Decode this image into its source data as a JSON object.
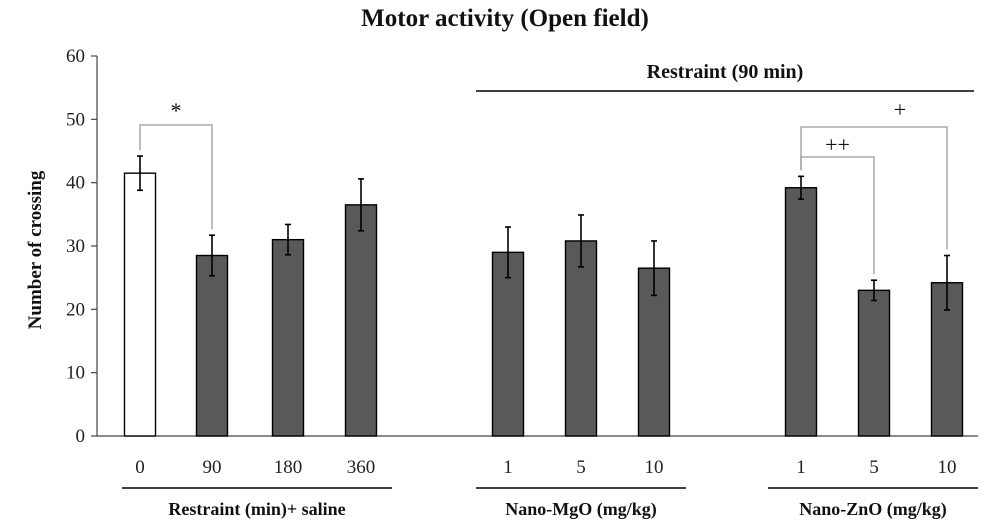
{
  "chart_data": {
    "type": "bar",
    "title": "Motor activity (Open field)",
    "ylabel": "Number of crossing",
    "xlabel": "",
    "ylim": [
      0,
      60
    ],
    "yticks": [
      0,
      10,
      20,
      30,
      40,
      50,
      60
    ],
    "colors": {
      "control": "#ffffff",
      "treated": "#595959",
      "outline": "#000000"
    },
    "categories": [
      "0",
      "90",
      "180",
      "360",
      "1",
      "5",
      "10",
      "1",
      "5",
      "10"
    ],
    "values": [
      41.5,
      28.5,
      31.0,
      36.5,
      29.0,
      30.8,
      26.5,
      39.2,
      23.0,
      24.2
    ],
    "errors": [
      2.7,
      3.2,
      2.4,
      4.1,
      4.0,
      4.1,
      4.3,
      1.8,
      1.6,
      4.3
    ],
    "bar_fill": [
      "control",
      "treated",
      "treated",
      "treated",
      "treated",
      "treated",
      "treated",
      "treated",
      "treated",
      "treated"
    ],
    "groups": [
      {
        "label": "Restraint (min)+ saline",
        "bars": [
          0,
          1,
          2,
          3
        ]
      },
      {
        "label": "Nano-MgO (mg/kg)",
        "bars": [
          4,
          5,
          6
        ]
      },
      {
        "label": "Nano-ZnO (mg/kg)",
        "bars": [
          7,
          8,
          9
        ]
      }
    ],
    "bracket": {
      "label": "Restraint (90 min)",
      "groups": [
        1,
        2
      ]
    },
    "significance": [
      {
        "from": 0,
        "to": 1,
        "label": "*"
      },
      {
        "from": 7,
        "to": 8,
        "label": "++"
      },
      {
        "from": 7,
        "to": 9,
        "label": "+"
      }
    ]
  }
}
